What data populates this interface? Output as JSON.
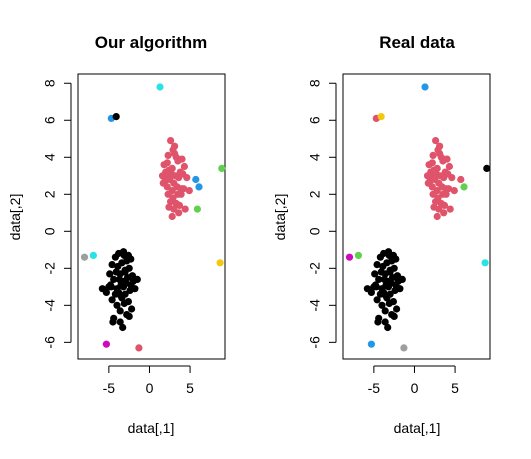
{
  "chart_data": [
    {
      "type": "scatter",
      "title": "Our algorithm",
      "xlabel": "data[,1]",
      "ylabel": "data[,2]",
      "xlim": [
        -8.8,
        9.3
      ],
      "ylim": [
        -6.9,
        8.5
      ],
      "xticks": [
        -5,
        0,
        5
      ],
      "xtick_labels": [
        "-5",
        "0",
        "5"
      ],
      "yticks": [
        -6,
        -4,
        -2,
        0,
        2,
        4,
        6,
        8
      ],
      "ytick_labels": [
        "-6",
        "-4",
        "-2",
        "0",
        "2",
        "4",
        "6",
        "8"
      ],
      "grid": false,
      "series": [
        {
          "color": "#DF536B",
          "x": [
            1.8,
            2.2,
            2.6,
            2.9,
            3.1,
            3.3,
            2.0,
            2.4,
            2.8,
            3.5,
            4.0,
            1.6,
            2.1,
            2.7,
            3.2,
            3.8,
            4.3,
            1.9,
            2.5,
            3.0,
            3.6,
            4.1,
            2.2,
            2.8,
            3.4,
            3.9,
            2.3,
            2.9,
            3.5,
            4.2,
            1.7,
            2.6,
            3.3,
            3.9,
            4.6,
            2.4,
            3.0,
            3.7,
            4.4,
            2.8,
            3.6,
            4.9,
            2.3,
            3.1
          ],
          "y": [
            3.6,
            3.7,
            4.9,
            4.4,
            4.6,
            4.0,
            3.2,
            3.3,
            3.4,
            3.8,
            3.9,
            3.0,
            3.0,
            3.1,
            3.0,
            3.2,
            3.5,
            2.7,
            2.8,
            2.6,
            2.9,
            3.1,
            2.4,
            2.2,
            2.4,
            2.3,
            2.0,
            1.8,
            2.0,
            2.3,
            2.6,
            1.6,
            1.5,
            2.0,
            2.9,
            1.3,
            1.2,
            1.4,
            1.2,
            0.8,
            1.0,
            2.2,
            4.1,
            4.2
          ]
        },
        {
          "color": "#000000",
          "x": [
            -4.5,
            -3.3,
            -2.8,
            -3.6,
            -2.5,
            -4.0,
            -2.2,
            -3.1,
            -4.6,
            -3.4,
            -2.6,
            -1.5,
            -5.3,
            -4.2,
            -3.8,
            -3.0,
            -2.4,
            -1.8,
            -5.0,
            -4.7,
            -4.0,
            -3.5,
            -3.2,
            -2.9,
            -2.3,
            -2.0,
            -5.8,
            -4.4,
            -3.7,
            -3.3,
            -2.7,
            -2.1,
            -4.9,
            -4.1,
            -3.6,
            -3.0,
            -2.5,
            -1.7,
            -4.6,
            -3.9,
            -3.4,
            -2.8,
            -2.3,
            -4.2,
            -3.1,
            -3.8,
            -3.2,
            -2.6,
            -4.4,
            -3.5,
            -3.6,
            -4.8,
            -3.0
          ],
          "y": [
            -4.9,
            -5.2,
            -4.5,
            -4.3,
            -4.6,
            -4.0,
            -4.2,
            -3.9,
            -3.7,
            -3.6,
            -3.8,
            -2.6,
            -3.3,
            -3.4,
            -3.3,
            -3.4,
            -3.2,
            -3.1,
            -3.0,
            -3.0,
            -3.1,
            -2.9,
            -3.0,
            -2.8,
            -2.9,
            -2.7,
            -3.1,
            -2.6,
            -2.6,
            -2.7,
            -2.5,
            -2.4,
            -2.3,
            -2.2,
            -2.3,
            -2.1,
            -2.0,
            -2.6,
            -1.8,
            -1.9,
            -1.7,
            -1.6,
            -1.5,
            -1.4,
            -1.3,
            -1.2,
            -1.1,
            -1.3,
            -4.7,
            -3.5,
            -4.9,
            -2.9,
            -2.2
          ]
        },
        {
          "color": "#2297E6",
          "x": [
            -4.7,
            5.7,
            6.1
          ],
          "y": [
            6.1,
            2.8,
            2.4
          ]
        },
        {
          "color": "#000000",
          "x": [
            -4.1
          ],
          "y": [
            6.2
          ]
        },
        {
          "color": "#28E2E5",
          "x": [
            1.3,
            -6.9
          ],
          "y": [
            7.8,
            -1.3
          ]
        },
        {
          "color": "#61D04F",
          "x": [
            8.9,
            5.9
          ],
          "y": [
            3.4,
            1.2
          ]
        },
        {
          "color": "#F5C710",
          "x": [
            8.7
          ],
          "y": [
            -1.7
          ]
        },
        {
          "color": "#9E9E9E",
          "x": [
            -8.0
          ],
          "y": [
            -1.4
          ]
        },
        {
          "color": "#CD0BBC",
          "x": [
            -5.3
          ],
          "y": [
            -6.1
          ]
        },
        {
          "color": "#DF536B",
          "x": [
            -1.3
          ],
          "y": [
            -6.3
          ]
        }
      ]
    },
    {
      "type": "scatter",
      "title": "Real data",
      "xlabel": "data[,1]",
      "ylabel": "data[,2]",
      "xlim": [
        -8.8,
        9.3
      ],
      "ylim": [
        -6.9,
        8.5
      ],
      "xticks": [
        -5,
        0,
        5
      ],
      "xtick_labels": [
        "-5",
        "0",
        "5"
      ],
      "yticks": [
        -6,
        -4,
        -2,
        0,
        2,
        4,
        6,
        8
      ],
      "ytick_labels": [
        "-6",
        "-4",
        "-2",
        "0",
        "2",
        "4",
        "6",
        "8"
      ],
      "grid": false,
      "series": [
        {
          "color": "#DF536B",
          "x": [
            1.8,
            2.2,
            2.6,
            2.9,
            3.1,
            3.3,
            2.0,
            2.4,
            2.8,
            3.5,
            4.0,
            1.6,
            2.1,
            2.7,
            3.2,
            3.8,
            4.3,
            1.9,
            2.5,
            3.0,
            3.6,
            4.1,
            2.2,
            2.8,
            3.4,
            3.9,
            2.3,
            2.9,
            3.5,
            4.2,
            1.7,
            2.6,
            3.3,
            3.9,
            4.6,
            2.4,
            3.0,
            3.7,
            4.4,
            2.8,
            3.6,
            4.9,
            2.3,
            3.1,
            5.7
          ],
          "y": [
            3.6,
            3.7,
            4.9,
            4.4,
            4.6,
            4.0,
            3.2,
            3.3,
            3.4,
            3.8,
            3.9,
            3.0,
            3.0,
            3.1,
            3.0,
            3.2,
            3.5,
            2.7,
            2.8,
            2.6,
            2.9,
            3.1,
            2.4,
            2.2,
            2.4,
            2.3,
            2.0,
            1.8,
            2.0,
            2.3,
            2.6,
            1.6,
            1.5,
            2.0,
            2.9,
            1.3,
            1.2,
            1.4,
            1.2,
            0.8,
            1.0,
            2.2,
            4.1,
            4.2,
            2.8
          ]
        },
        {
          "color": "#000000",
          "x": [
            -4.5,
            -3.3,
            -2.8,
            -3.6,
            -2.5,
            -4.0,
            -2.2,
            -3.1,
            -4.6,
            -3.4,
            -2.6,
            -1.5,
            -5.3,
            -4.2,
            -3.8,
            -3.0,
            -2.4,
            -1.8,
            -5.0,
            -4.7,
            -4.0,
            -3.5,
            -3.2,
            -2.9,
            -2.3,
            -2.0,
            -5.8,
            -4.4,
            -3.7,
            -3.3,
            -2.7,
            -2.1,
            -4.9,
            -4.1,
            -3.6,
            -3.0,
            -2.5,
            -1.7,
            -4.6,
            -3.9,
            -3.4,
            -2.8,
            -2.3,
            -4.2,
            -3.1,
            -3.8,
            -3.2,
            -2.6,
            -4.4,
            -3.5,
            -3.6,
            -4.8,
            -3.0,
            8.9
          ],
          "y": [
            -4.9,
            -5.2,
            -4.5,
            -4.3,
            -4.6,
            -4.0,
            -4.2,
            -3.9,
            -3.7,
            -3.6,
            -3.8,
            -2.6,
            -3.3,
            -3.4,
            -3.3,
            -3.4,
            -3.2,
            -3.1,
            -3.0,
            -3.0,
            -3.1,
            -2.9,
            -3.0,
            -2.8,
            -2.9,
            -2.7,
            -3.1,
            -2.6,
            -2.6,
            -2.7,
            -2.5,
            -2.4,
            -2.3,
            -2.2,
            -2.3,
            -2.1,
            -2.0,
            -2.6,
            -1.8,
            -1.9,
            -1.7,
            -1.6,
            -1.5,
            -1.4,
            -1.3,
            -1.2,
            -1.1,
            -1.3,
            -4.7,
            -3.5,
            -4.9,
            -2.9,
            -2.2,
            3.4
          ]
        },
        {
          "color": "#2297E6",
          "x": [
            1.3,
            -5.3
          ],
          "y": [
            7.8,
            -6.1
          ]
        },
        {
          "color": "#DF536B",
          "x": [
            -4.7
          ],
          "y": [
            6.1
          ]
        },
        {
          "color": "#F5C710",
          "x": [
            -4.1
          ],
          "y": [
            6.2
          ]
        },
        {
          "color": "#61D04F",
          "x": [
            6.1,
            -6.9
          ],
          "y": [
            2.4,
            -1.3
          ]
        },
        {
          "color": "#28E2E5",
          "x": [
            8.7
          ],
          "y": [
            -1.7
          ]
        },
        {
          "color": "#CD0BBC",
          "x": [
            -8.0
          ],
          "y": [
            -1.4
          ]
        },
        {
          "color": "#9E9E9E",
          "x": [
            -1.3
          ],
          "y": [
            -6.3
          ]
        }
      ]
    }
  ]
}
